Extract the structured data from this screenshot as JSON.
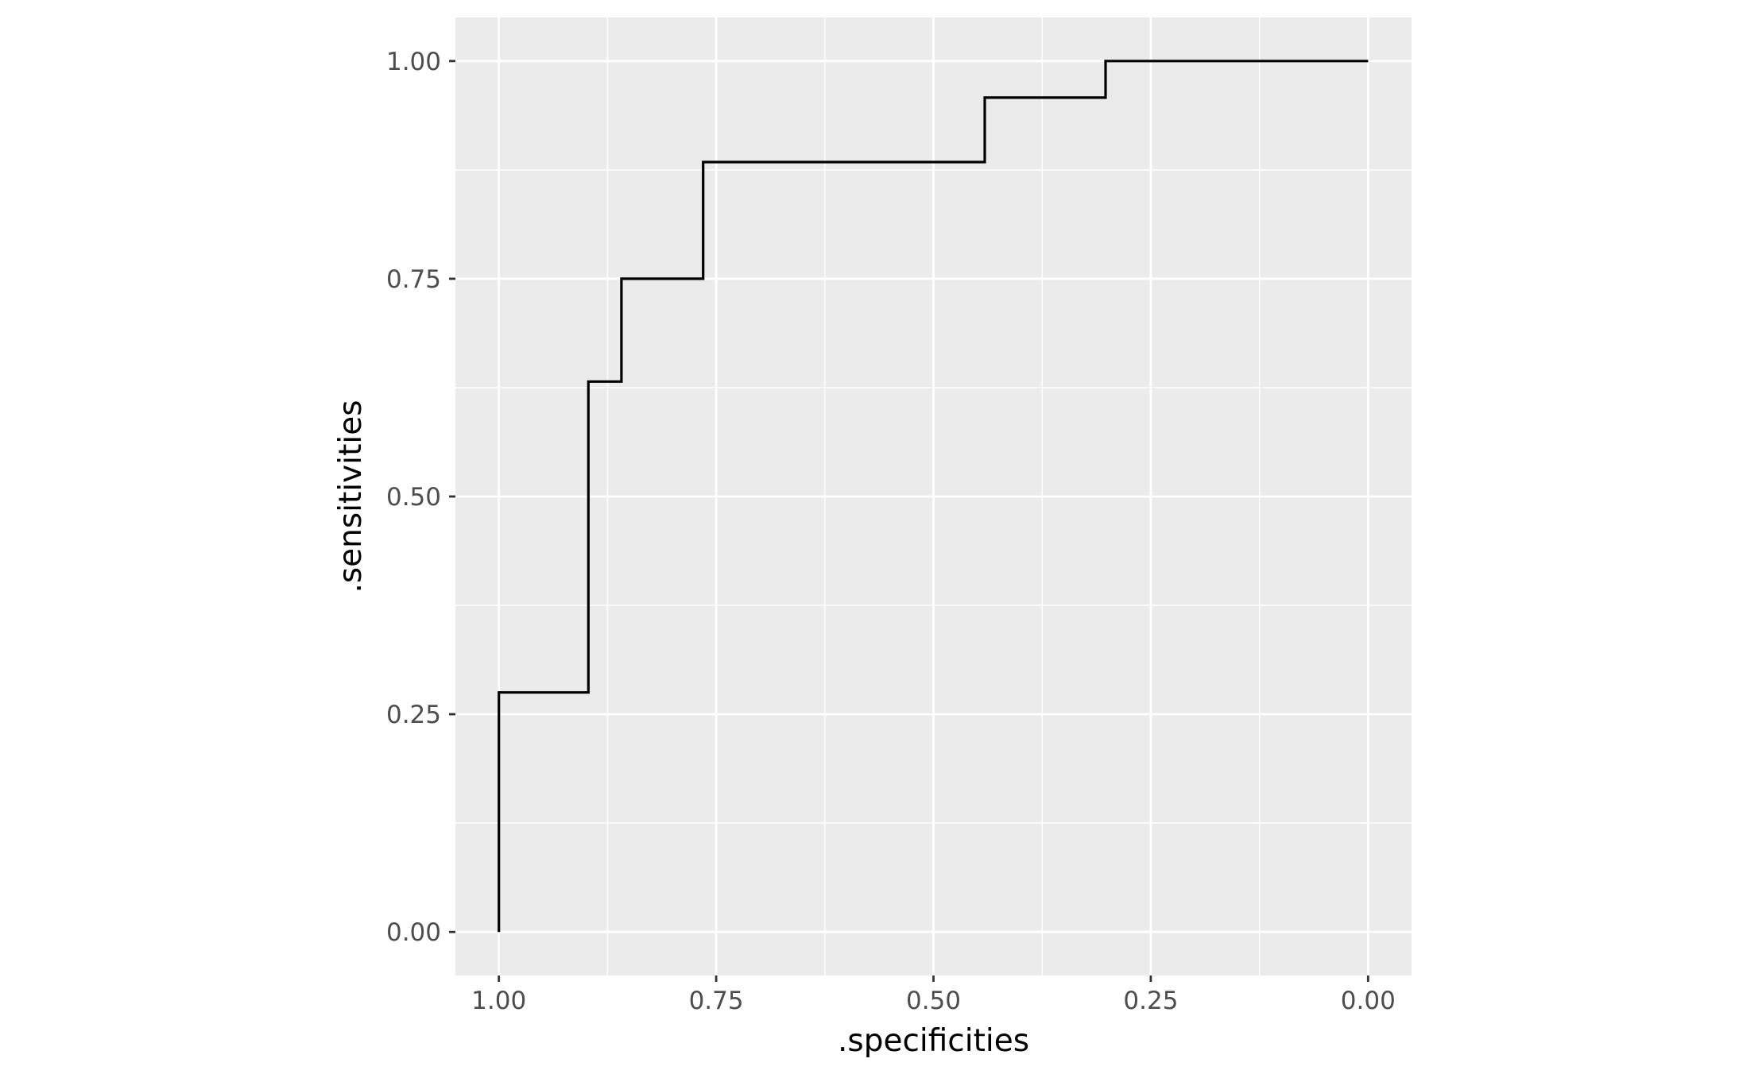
{
  "chart_data": {
    "type": "line",
    "step": true,
    "xlabel": ".specificities",
    "ylabel": ".sensitivities",
    "x_reversed": true,
    "xlim": [
      1.05,
      -0.05
    ],
    "ylim": [
      -0.05,
      1.05
    ],
    "x_ticks": [
      "1.00",
      "0.75",
      "0.50",
      "0.25",
      "0.00"
    ],
    "y_ticks": [
      "0.00",
      "0.25",
      "0.50",
      "0.75",
      "1.00"
    ],
    "grid": true,
    "colors": {
      "panel": "#ebebeb",
      "grid": "#ffffff",
      "line": "#000000",
      "tick_text": "#4d4d4d",
      "tick_mark": "#333333"
    },
    "series": [
      {
        "x": [
          1.0,
          1.0,
          0.897,
          0.897,
          0.859,
          0.859,
          0.765,
          0.765,
          0.441,
          0.441,
          0.302,
          0.302,
          0.0
        ],
        "y": [
          0.0,
          0.275,
          0.275,
          0.632,
          0.632,
          0.75,
          0.75,
          0.884,
          0.884,
          0.958,
          0.958,
          1.0,
          1.0
        ]
      }
    ]
  }
}
